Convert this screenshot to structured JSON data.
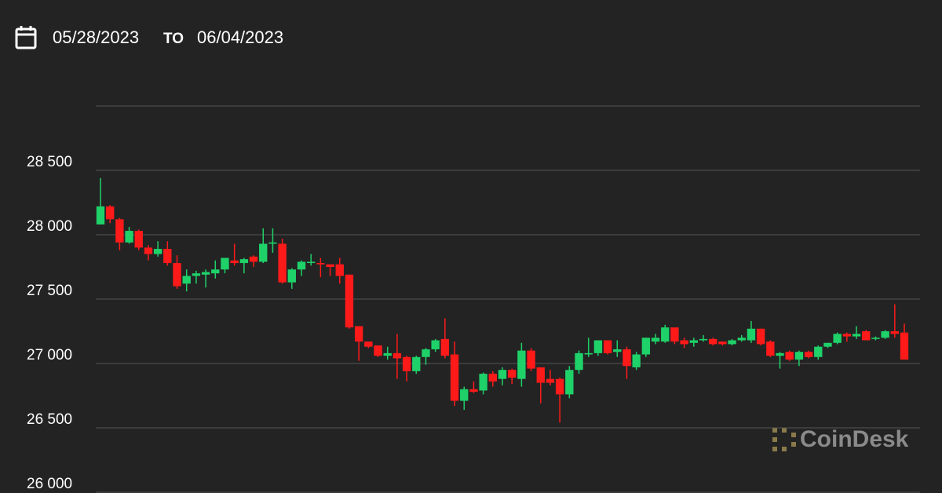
{
  "header": {
    "start_date": "05/28/2023",
    "separator": "TO",
    "end_date": "06/04/2023"
  },
  "watermark": "CoinDesk",
  "chart_data": {
    "type": "candlestick",
    "up_color": "#1fd169",
    "down_color": "#ff1a1a",
    "grid": true,
    "ylim": [
      26000,
      29000
    ],
    "yticks": [
      {
        "value": 26000,
        "label": "26 000"
      },
      {
        "value": 26500,
        "label": "26 500"
      },
      {
        "value": 27000,
        "label": "27 000"
      },
      {
        "value": 27500,
        "label": "27 500"
      },
      {
        "value": 28000,
        "label": "28 000"
      },
      {
        "value": 28500,
        "label": "28 500"
      }
    ],
    "open": [
      28080,
      28220,
      28120,
      27940,
      28030,
      27900,
      27850,
      27890,
      27780,
      27620,
      27680,
      27690,
      27700,
      27730,
      27800,
      27780,
      27830,
      27790,
      27930,
      27930,
      27630,
      27730,
      27780,
      27780,
      27770,
      27770,
      27690,
      27290,
      27170,
      27140,
      27060,
      27080,
      27050,
      26940,
      27050,
      27110,
      27190,
      27070,
      26710,
      26800,
      26790,
      26920,
      26880,
      26950,
      26880,
      27100,
      26970,
      26880,
      26880,
      26760,
      26950,
      27070,
      27080,
      27180,
      27090,
      27110,
      26970,
      27070,
      27170,
      27170,
      27280,
      27180,
      27160,
      27180,
      27190,
      27170,
      27150,
      27180,
      27180,
      27270,
      27170,
      27060,
      27090,
      27030,
      27090,
      27050,
      27130,
      27160,
      27230,
      27210,
      27250,
      27190,
      27200,
      27250,
      27240
    ],
    "high": [
      28440,
      28230,
      28130,
      28060,
      28040,
      27920,
      27950,
      27950,
      27840,
      27730,
      27720,
      27730,
      27800,
      27820,
      27930,
      27820,
      27840,
      28050,
      28050,
      27970,
      27740,
      27800,
      27850,
      27820,
      27770,
      27820,
      27690,
      27290,
      27170,
      27140,
      27130,
      27230,
      27060,
      27060,
      27120,
      27190,
      27350,
      27170,
      26820,
      26860,
      26930,
      26940,
      26970,
      26960,
      27160,
      27120,
      26970,
      26950,
      26890,
      26980,
      27100,
      27200,
      27180,
      27180,
      27180,
      27130,
      27090,
      27200,
      27230,
      27300,
      27280,
      27200,
      27200,
      27220,
      27200,
      27170,
      27190,
      27220,
      27330,
      27270,
      27180,
      27090,
      27100,
      27100,
      27100,
      27140,
      27160,
      27240,
      27240,
      27290,
      27260,
      27210,
      27260,
      27460,
      27310
    ],
    "low": [
      28080,
      28090,
      27880,
      27930,
      27880,
      27800,
      27830,
      27760,
      27580,
      27560,
      27620,
      27590,
      27660,
      27700,
      27760,
      27700,
      27750,
      27780,
      27860,
      27620,
      27580,
      27680,
      27760,
      27670,
      27680,
      27620,
      27270,
      27020,
      27120,
      27050,
      27030,
      26880,
      26860,
      26920,
      26990,
      27090,
      27040,
      26670,
      26640,
      26770,
      26760,
      26820,
      26830,
      26840,
      26820,
      26940,
      26690,
      26830,
      26540,
      26730,
      26920,
      27050,
      27060,
      27070,
      27050,
      26880,
      26950,
      27050,
      27150,
      27160,
      27150,
      27120,
      27130,
      27170,
      27140,
      27140,
      27140,
      27170,
      27160,
      27140,
      27050,
      26960,
      27020,
      26980,
      27040,
      27030,
      27120,
      27150,
      27170,
      27190,
      27180,
      27180,
      27190,
      27200,
      27030
    ],
    "close": [
      28220,
      28120,
      27940,
      28030,
      27900,
      27850,
      27890,
      27780,
      27600,
      27680,
      27700,
      27710,
      27730,
      27820,
      27780,
      27810,
      27790,
      27930,
      27940,
      27630,
      27730,
      27790,
      27790,
      27770,
      27750,
      27680,
      27280,
      27170,
      27130,
      27060,
      27080,
      27040,
      26940,
      27050,
      27110,
      27180,
      27060,
      26710,
      26800,
      26780,
      26920,
      26860,
      26950,
      26890,
      27100,
      26960,
      26850,
      26850,
      26760,
      26950,
      27080,
      27080,
      27180,
      27080,
      27110,
      26980,
      27070,
      27200,
      27200,
      27280,
      27170,
      27150,
      27180,
      27190,
      27150,
      27150,
      27180,
      27200,
      27270,
      27150,
      27060,
      27080,
      27030,
      27090,
      27050,
      27130,
      27160,
      27230,
      27210,
      27230,
      27180,
      27200,
      27250,
      27230,
      27030
    ]
  }
}
